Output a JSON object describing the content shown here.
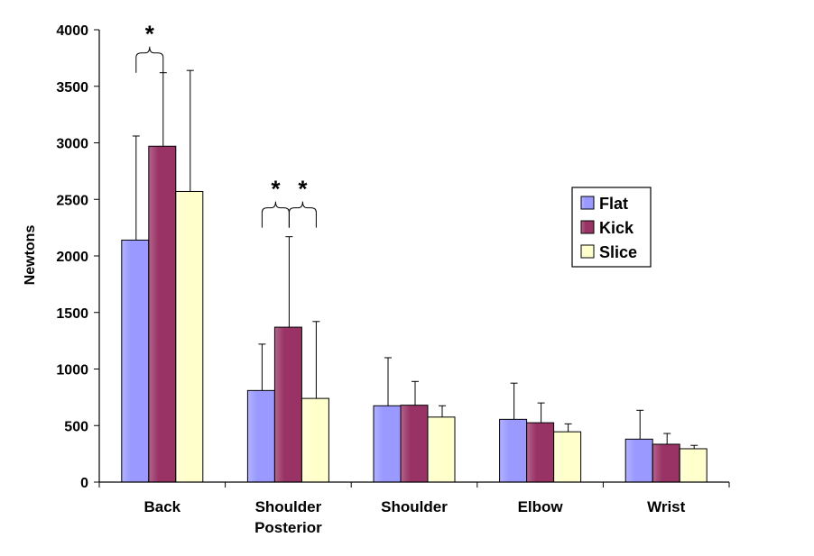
{
  "chart_data": {
    "type": "bar",
    "title": "",
    "xlabel": "",
    "ylabel": "Newtons",
    "ylim": [
      0,
      4000
    ],
    "ytick_step": 500,
    "categories": [
      [
        "Back"
      ],
      [
        "Shoulder",
        "Posterior"
      ],
      [
        "Shoulder"
      ],
      [
        "Elbow"
      ],
      [
        "Wrist"
      ]
    ],
    "series": [
      {
        "name": "Flat",
        "color": "#9999ff",
        "values": [
          2140,
          810,
          675,
          555,
          380
        ],
        "errors": [
          920,
          410,
          425,
          320,
          255
        ]
      },
      {
        "name": "Kick",
        "color": "#993366",
        "values": [
          2970,
          1370,
          680,
          525,
          335
        ],
        "errors": [
          650,
          800,
          210,
          175,
          95
        ]
      },
      {
        "name": "Slice",
        "color": "#ffffcc",
        "values": [
          2570,
          740,
          575,
          445,
          295
        ],
        "errors": [
          1070,
          680,
          100,
          70,
          30
        ]
      }
    ],
    "significance": [
      {
        "category": 0,
        "pair": [
          0,
          1
        ],
        "label": "*"
      },
      {
        "category": 1,
        "pair": [
          0,
          1
        ],
        "label": "*"
      },
      {
        "category": 1,
        "pair": [
          1,
          2
        ],
        "label": "*"
      }
    ],
    "legend": {
      "position": "right"
    },
    "grid": false
  }
}
